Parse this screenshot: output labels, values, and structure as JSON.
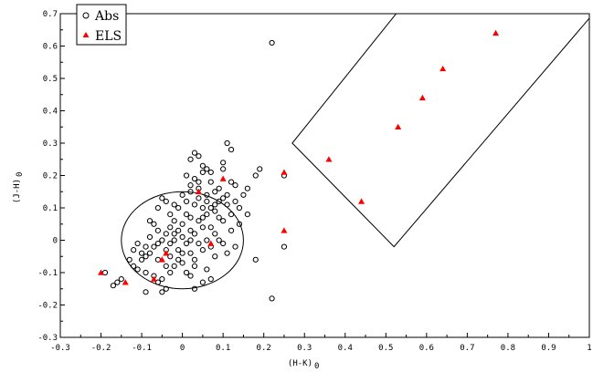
{
  "chart_data": {
    "type": "scatter",
    "xlabel": "(H-K)",
    "xlabel_sub": "0",
    "ylabel": "(J-H)",
    "ylabel_sub": "0",
    "xlim": [
      -0.3,
      1.0
    ],
    "ylim": [
      -0.3,
      0.7
    ],
    "xticks": [
      -0.3,
      -0.2,
      -0.1,
      0,
      0.1,
      0.2,
      0.3,
      0.4,
      0.5,
      0.6,
      0.7,
      0.8,
      0.9,
      1.0
    ],
    "yticks": [
      -0.3,
      -0.2,
      -0.1,
      0,
      0.1,
      0.2,
      0.3,
      0.4,
      0.5,
      0.6,
      0.7
    ],
    "xtick_labels": [
      "-0.3",
      "-0.2",
      "-0.1",
      "0",
      "0.1",
      "0.2",
      "0.3",
      "0.4",
      "0.5",
      "0.6",
      "0.7",
      "0.8",
      "0.9",
      "1"
    ],
    "ytick_labels": [
      "-0.3",
      "-0.2",
      "-0.1",
      "0",
      "0.1",
      "0.2",
      "0.3",
      "0.4",
      "0.5",
      "0.6",
      "0.7"
    ],
    "grid": false,
    "legend_position": "top-left",
    "series": [
      {
        "name": "Abs",
        "marker": "open-circle",
        "color": "#000000",
        "points": [
          [
            0.22,
            0.61
          ],
          [
            0.11,
            0.3
          ],
          [
            0.12,
            0.28
          ],
          [
            0.03,
            0.27
          ],
          [
            0.04,
            0.26
          ],
          [
            0.02,
            0.25
          ],
          [
            0.05,
            0.23
          ],
          [
            0.06,
            0.22
          ],
          [
            0.07,
            0.21
          ],
          [
            0.05,
            0.21
          ],
          [
            0.01,
            0.2
          ],
          [
            0.03,
            0.19
          ],
          [
            0.1,
            0.24
          ],
          [
            0.1,
            0.22
          ],
          [
            0.19,
            0.22
          ],
          [
            0.18,
            0.2
          ],
          [
            0.07,
            0.18
          ],
          [
            0.12,
            0.18
          ],
          [
            0.13,
            0.17
          ],
          [
            0.16,
            0.16
          ],
          [
            0.25,
            0.2
          ],
          [
            0.04,
            0.16
          ],
          [
            0.02,
            0.15
          ],
          [
            0.06,
            0.14
          ],
          [
            0.08,
            0.15
          ],
          [
            0.1,
            0.13
          ],
          [
            0.09,
            0.12
          ],
          [
            0.11,
            0.11
          ],
          [
            0.0,
            0.14
          ],
          [
            0.01,
            0.12
          ],
          [
            0.03,
            0.11
          ],
          [
            0.05,
            0.1
          ],
          [
            0.08,
            0.09
          ],
          [
            0.12,
            0.08
          ],
          [
            0.09,
            0.07
          ],
          [
            0.1,
            0.06
          ],
          [
            0.07,
            0.04
          ],
          [
            0.08,
            0.02
          ],
          [
            0.05,
            0.04
          ],
          [
            0.02,
            0.03
          ],
          [
            0.0,
            0.05
          ],
          [
            -0.02,
            0.06
          ],
          [
            -0.03,
            0.08
          ],
          [
            -0.01,
            0.1
          ],
          [
            -0.04,
            0.12
          ],
          [
            -0.05,
            0.13
          ],
          [
            -0.03,
            0.04
          ],
          [
            -0.02,
            0.02
          ],
          [
            -0.05,
            0.0
          ],
          [
            -0.06,
            -0.01
          ],
          [
            -0.07,
            -0.02
          ],
          [
            -0.08,
            -0.04
          ],
          [
            -0.09,
            -0.05
          ],
          [
            -0.1,
            -0.06
          ],
          [
            -0.04,
            -0.03
          ],
          [
            -0.03,
            -0.05
          ],
          [
            -0.01,
            -0.03
          ],
          [
            0.01,
            -0.01
          ],
          [
            0.02,
            0.0
          ],
          [
            0.0,
            0.01
          ],
          [
            -0.02,
            0.0
          ],
          [
            -0.04,
            0.02
          ],
          [
            -0.06,
            0.03
          ],
          [
            -0.08,
            0.01
          ],
          [
            -0.09,
            -0.02
          ],
          [
            -0.11,
            -0.01
          ],
          [
            -0.12,
            -0.03
          ],
          [
            -0.13,
            -0.06
          ],
          [
            -0.11,
            -0.09
          ],
          [
            -0.09,
            -0.1
          ],
          [
            -0.07,
            -0.11
          ],
          [
            -0.06,
            -0.13
          ],
          [
            -0.05,
            -0.12
          ],
          [
            -0.04,
            -0.15
          ],
          [
            -0.03,
            -0.1
          ],
          [
            -0.02,
            -0.08
          ],
          [
            0.0,
            -0.07
          ],
          [
            0.02,
            -0.04
          ],
          [
            0.03,
            -0.06
          ],
          [
            0.05,
            -0.03
          ],
          [
            0.04,
            -0.01
          ],
          [
            0.06,
            0.0
          ],
          [
            0.07,
            -0.02
          ],
          [
            0.09,
            0.0
          ],
          [
            0.1,
            -0.01
          ],
          [
            0.08,
            -0.05
          ],
          [
            0.12,
            0.03
          ],
          [
            0.14,
            0.05
          ],
          [
            0.01,
            -0.1
          ],
          [
            0.02,
            -0.11
          ],
          [
            0.03,
            -0.15
          ],
          [
            0.05,
            -0.13
          ],
          [
            0.07,
            -0.12
          ],
          [
            -0.15,
            -0.12
          ],
          [
            -0.16,
            -0.13
          ],
          [
            -0.09,
            -0.16
          ],
          [
            -0.05,
            -0.16
          ],
          [
            -0.17,
            -0.14
          ],
          [
            -0.19,
            -0.1
          ],
          [
            0.18,
            -0.06
          ],
          [
            0.22,
            -0.18
          ],
          [
            0.25,
            -0.02
          ],
          [
            0.16,
            0.08
          ],
          [
            0.14,
            0.1
          ],
          [
            0.06,
            0.08
          ],
          [
            0.04,
            0.06
          ],
          [
            -0.01,
            0.03
          ],
          [
            -0.03,
            -0.01
          ],
          [
            -0.06,
            -0.06
          ],
          [
            0.0,
            -0.04
          ],
          [
            0.03,
            0.02
          ],
          [
            0.06,
            0.12
          ],
          [
            0.09,
            0.16
          ],
          [
            0.11,
            0.14
          ],
          [
            0.04,
            0.18
          ],
          [
            0.02,
            0.07
          ],
          [
            -0.02,
            0.11
          ],
          [
            -0.07,
            0.05
          ],
          [
            -0.1,
            -0.04
          ],
          [
            -0.12,
            -0.08
          ],
          [
            0.01,
            0.08
          ],
          [
            0.05,
            0.07
          ],
          [
            0.08,
            0.11
          ],
          [
            0.13,
            0.12
          ],
          [
            0.15,
            0.14
          ],
          [
            -0.01,
            -0.06
          ],
          [
            -0.04,
            -0.08
          ],
          [
            -0.06,
            0.1
          ],
          [
            -0.08,
            0.06
          ],
          [
            0.03,
            -0.08
          ],
          [
            0.06,
            -0.09
          ],
          [
            0.11,
            -0.04
          ],
          [
            0.13,
            -0.02
          ],
          [
            0.04,
            0.13
          ],
          [
            0.07,
            0.1
          ],
          [
            0.02,
            0.17
          ]
        ]
      },
      {
        "name": "ELS",
        "marker": "filled-triangle",
        "color": "#ff0000",
        "points": [
          [
            0.77,
            0.64
          ],
          [
            0.64,
            0.53
          ],
          [
            0.59,
            0.44
          ],
          [
            0.53,
            0.35
          ],
          [
            0.36,
            0.25
          ],
          [
            0.44,
            0.12
          ],
          [
            0.25,
            0.21
          ],
          [
            0.1,
            0.19
          ],
          [
            0.04,
            0.15
          ],
          [
            0.25,
            0.03
          ],
          [
            -0.2,
            -0.1
          ],
          [
            -0.14,
            -0.13
          ],
          [
            -0.07,
            -0.12
          ],
          [
            -0.05,
            -0.06
          ],
          [
            -0.04,
            -0.04
          ],
          [
            0.07,
            -0.01
          ]
        ]
      }
    ],
    "shapes": [
      {
        "kind": "ellipse",
        "cx": 0.0,
        "cy": 0.0,
        "rx": 0.15,
        "ry": 0.15
      },
      {
        "kind": "polygon",
        "points": [
          [
            0.27,
            0.3
          ],
          [
            0.52,
            -0.02
          ],
          [
            1.03,
            0.73
          ],
          [
            0.57,
            0.77
          ]
        ]
      }
    ]
  }
}
